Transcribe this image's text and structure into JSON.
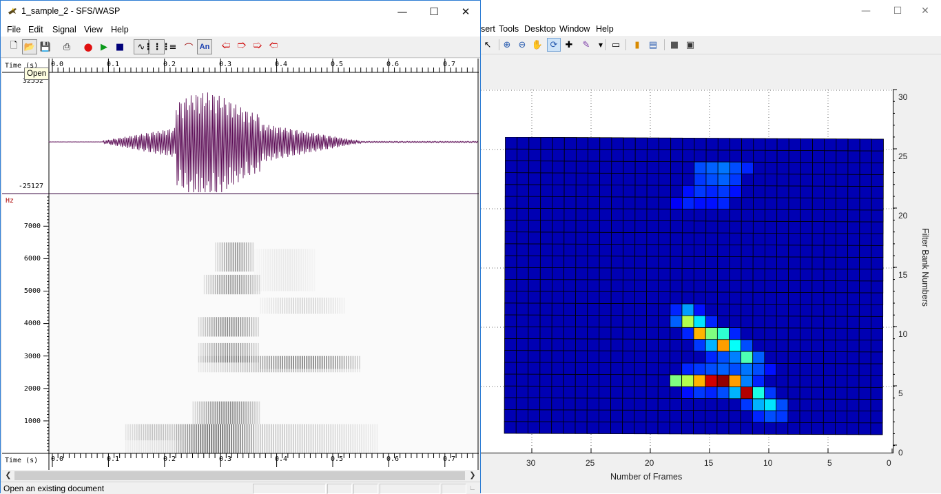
{
  "figure_window": {
    "menus": [
      "sert",
      "Tools",
      "Desktop",
      "Window",
      "Help"
    ],
    "caption_icons": [
      "minimize-icon",
      "maximize-icon",
      "close-icon"
    ],
    "toolbar_icons": [
      "pointer-icon",
      "zoom-in-icon",
      "zoom-out-icon",
      "pan-icon",
      "rotate-icon",
      "data-cursor-icon",
      "brush-icon",
      "link-plot-icon",
      "colorbar-icon",
      "legend-icon",
      "hide-plot-tools-icon",
      "show-plot-tools-icon"
    ]
  },
  "chart_data": {
    "type": "heatmap",
    "xlabel": "Number of Frames",
    "ylabel": "Filter Bank Numbers",
    "x_ticks": [
      "30",
      "25",
      "20",
      "15",
      "10",
      "5",
      "0"
    ],
    "y_ticks": [
      "30",
      "25",
      "20",
      "15",
      "10",
      "5",
      "0"
    ],
    "xlim": [
      33,
      0
    ],
    "ylim": [
      0,
      30
    ],
    "x_reversed": true,
    "grid": true,
    "colormap": "jet",
    "note_cells": "cells listed as [frame, filter_bank, level 0-1]; all other cells in the 1-32 x 1-25 surface are at base level 0.05",
    "frames": [
      1,
      32
    ],
    "banks": [
      1,
      25
    ],
    "cells": [
      [
        16,
        23,
        0.2
      ],
      [
        15,
        23,
        0.22
      ],
      [
        14,
        23,
        0.24
      ],
      [
        13,
        23,
        0.2
      ],
      [
        12,
        23,
        0.16
      ],
      [
        16,
        22,
        0.18
      ],
      [
        15,
        22,
        0.2
      ],
      [
        14,
        22,
        0.22
      ],
      [
        13,
        22,
        0.18
      ],
      [
        17,
        21,
        0.14
      ],
      [
        16,
        21,
        0.18
      ],
      [
        15,
        21,
        0.16
      ],
      [
        14,
        21,
        0.18
      ],
      [
        13,
        21,
        0.14
      ],
      [
        18,
        20,
        0.12
      ],
      [
        17,
        20,
        0.16
      ],
      [
        16,
        20,
        0.14
      ],
      [
        15,
        20,
        0.14
      ],
      [
        14,
        20,
        0.16
      ],
      [
        18,
        11,
        0.16
      ],
      [
        17,
        11,
        0.28
      ],
      [
        16,
        11,
        0.14
      ],
      [
        18,
        10,
        0.22
      ],
      [
        17,
        10,
        0.55
      ],
      [
        16,
        10,
        0.35
      ],
      [
        15,
        10,
        0.16
      ],
      [
        17,
        9,
        0.16
      ],
      [
        16,
        9,
        0.7
      ],
      [
        15,
        9,
        0.5
      ],
      [
        14,
        9,
        0.42
      ],
      [
        13,
        9,
        0.16
      ],
      [
        16,
        8,
        0.18
      ],
      [
        15,
        8,
        0.3
      ],
      [
        14,
        8,
        0.72
      ],
      [
        13,
        8,
        0.38
      ],
      [
        12,
        8,
        0.2
      ],
      [
        15,
        7,
        0.16
      ],
      [
        14,
        7,
        0.2
      ],
      [
        13,
        7,
        0.25
      ],
      [
        12,
        7,
        0.45
      ],
      [
        11,
        7,
        0.22
      ],
      [
        17,
        6,
        0.16
      ],
      [
        16,
        6,
        0.18
      ],
      [
        15,
        6,
        0.2
      ],
      [
        14,
        6,
        0.22
      ],
      [
        13,
        6,
        0.2
      ],
      [
        12,
        6,
        0.24
      ],
      [
        11,
        6,
        0.2
      ],
      [
        10,
        6,
        0.14
      ],
      [
        18,
        5,
        0.5
      ],
      [
        17,
        5,
        0.55
      ],
      [
        16,
        5,
        0.7
      ],
      [
        15,
        5,
        0.92
      ],
      [
        14,
        5,
        0.98
      ],
      [
        13,
        5,
        0.72
      ],
      [
        12,
        5,
        0.25
      ],
      [
        11,
        5,
        0.16
      ],
      [
        17,
        4,
        0.14
      ],
      [
        16,
        4,
        0.18
      ],
      [
        15,
        4,
        0.16
      ],
      [
        14,
        4,
        0.2
      ],
      [
        13,
        4,
        0.3
      ],
      [
        12,
        4,
        0.95
      ],
      [
        11,
        4,
        0.4
      ],
      [
        10,
        4,
        0.18
      ],
      [
        12,
        3,
        0.18
      ],
      [
        11,
        3,
        0.3
      ],
      [
        10,
        3,
        0.35
      ],
      [
        9,
        3,
        0.2
      ],
      [
        11,
        2,
        0.16
      ],
      [
        10,
        2,
        0.2
      ],
      [
        9,
        2,
        0.18
      ]
    ]
  },
  "wasp_window": {
    "title": "1_sample_2 - SFS/WASP",
    "menus": [
      "File",
      "Edit",
      "Signal",
      "View",
      "Help"
    ],
    "caption_icons": [
      "minimize-icon",
      "maximize-icon",
      "close-icon"
    ],
    "toolbar_icons": [
      "new-file-icon",
      "open-folder-icon",
      "save-disk-icon",
      "print-icon",
      "record-icon",
      "play-icon",
      "stop-icon",
      "waveform-icon",
      "wideband-spectrogram-icon",
      "narrowband-spectrogram-icon",
      "pitch-track-icon",
      "annotation-icon",
      "left-arrow-icon",
      "down-arrow-icon",
      "up-arrow-icon",
      "right-arrow-icon"
    ],
    "annotation_label": "An",
    "tooltip": "Open",
    "time_axis_label": "Time (s)",
    "time_ticks": [
      "0.0",
      "0.1",
      "0.2",
      "0.3",
      "0.4",
      "0.5",
      "0.6",
      "0.7"
    ],
    "waveform": {
      "max_label": "32552",
      "min_label": "-25127",
      "color": "#5b0b55"
    },
    "spectrogram": {
      "unit_label": "Hz",
      "freq_ticks": [
        "7000",
        "6000",
        "5000",
        "4000",
        "3000",
        "2000",
        "1000"
      ]
    },
    "status": "Open an existing document"
  }
}
